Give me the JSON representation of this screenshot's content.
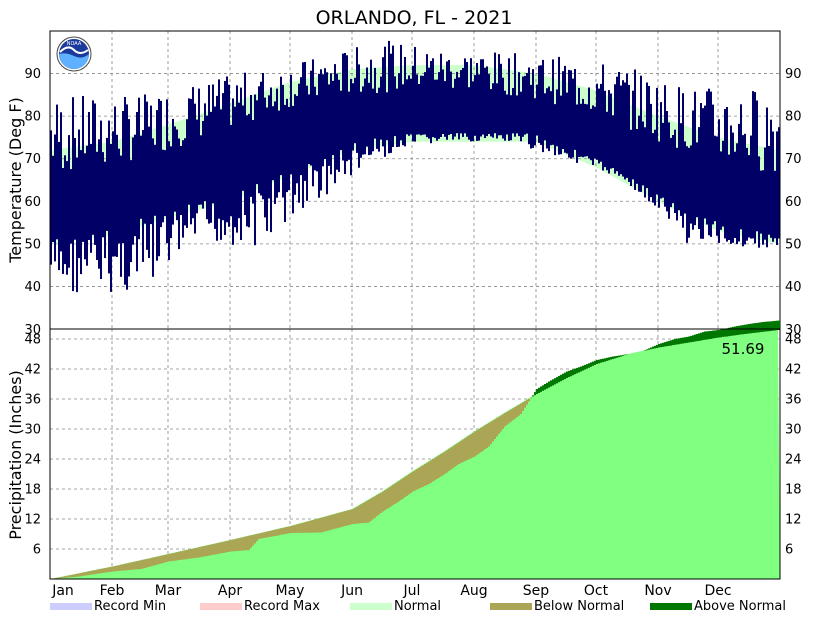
{
  "chart_data": [
    {
      "type": "bar",
      "panel": "temperature",
      "title": "ORLANDO, FL - 2021",
      "ylabel": "Temperature (Deg F)",
      "ylim": [
        30,
        100
      ],
      "yticks": [
        40,
        50,
        60,
        70,
        80,
        90
      ],
      "xlabel": "",
      "grid": true,
      "x_ticks": [
        "Jan",
        "Feb",
        "Mar",
        "Apr",
        "May",
        "Jun",
        "Jul",
        "Aug",
        "Sep",
        "Oct",
        "Nov",
        "Dec"
      ],
      "normal_band": {
        "color": "#ccffcc",
        "day_of_year": [
          1,
          32,
          60,
          91,
          121,
          152,
          182,
          213,
          244,
          274,
          305,
          335,
          365
        ],
        "normal_low": [
          50,
          52,
          56,
          60,
          66,
          72,
          74,
          74,
          74,
          68,
          60,
          53,
          50
        ],
        "normal_high": [
          72,
          74,
          78,
          83,
          88,
          91,
          92,
          92,
          90,
          86,
          80,
          75,
          72
        ]
      },
      "observed_color": "#000066",
      "monthly_observed_range": [
        {
          "month": "Jan",
          "low": 38,
          "high": 85
        },
        {
          "month": "Feb",
          "low": 38,
          "high": 85
        },
        {
          "month": "Mar",
          "low": 50,
          "high": 88
        },
        {
          "month": "Apr",
          "low": 49,
          "high": 91
        },
        {
          "month": "May",
          "low": 60,
          "high": 94
        },
        {
          "month": "Jun",
          "low": 70,
          "high": 98
        },
        {
          "month": "Jul",
          "low": 74,
          "high": 96
        },
        {
          "month": "Aug",
          "low": 74,
          "high": 95
        },
        {
          "month": "Sep",
          "low": 70,
          "high": 94
        },
        {
          "month": "Oct",
          "low": 65,
          "high": 92
        },
        {
          "month": "Nov",
          "low": 50,
          "high": 87
        },
        {
          "month": "Dec",
          "low": 49,
          "high": 87
        }
      ]
    },
    {
      "type": "area",
      "panel": "precipitation",
      "ylabel": "Precipitation (Inches)",
      "ylim": [
        0,
        50
      ],
      "yticks": [
        6,
        12,
        18,
        24,
        30,
        36,
        42,
        48
      ],
      "grid": true,
      "x_ticks": [
        "Jan",
        "Feb",
        "Mar",
        "Apr",
        "May",
        "Jun",
        "Jul",
        "Aug",
        "Sep",
        "Oct",
        "Nov",
        "Dec"
      ],
      "total_label": "51.69",
      "normal_fill_color": "#80ff80",
      "below_normal_color": "#aaa655",
      "above_normal_color": "#007700",
      "normal_cumulative": {
        "day_of_year": [
          1,
          32,
          60,
          91,
          121,
          152,
          167,
          182,
          198,
          213,
          228,
          244,
          259,
          274,
          290,
          305,
          320,
          335,
          350,
          365
        ],
        "values": [
          0,
          2.5,
          5.0,
          7.8,
          10.6,
          14.0,
          17.5,
          21.5,
          25.5,
          29.5,
          33.2,
          37.0,
          40.2,
          43.0,
          45.0,
          46.3,
          47.3,
          48.3,
          49.1,
          49.8
        ]
      },
      "observed_cumulative": {
        "day_of_year": [
          1,
          15,
          32,
          46,
          60,
          75,
          91,
          100,
          105,
          121,
          136,
          152,
          160,
          167,
          175,
          182,
          190,
          198,
          205,
          213,
          220,
          228,
          236,
          244,
          250,
          259,
          266,
          274,
          282,
          290,
          297,
          305,
          313,
          320,
          328,
          335,
          343,
          350,
          357,
          365
        ],
        "values": [
          0,
          0.5,
          1.5,
          2.0,
          3.5,
          4.3,
          5.5,
          5.8,
          8.0,
          9.2,
          9.3,
          11.0,
          11.3,
          13.5,
          15.5,
          17.5,
          19.0,
          21.0,
          23.0,
          24.5,
          26.5,
          30.5,
          33.0,
          38.0,
          39.5,
          41.5,
          42.5,
          43.8,
          44.5,
          45.0,
          45.6,
          47.0,
          48.0,
          48.5,
          49.5,
          49.8,
          50.5,
          51.0,
          51.4,
          51.69
        ]
      },
      "legend": [
        {
          "label": "Record Min",
          "color": "#ccccff"
        },
        {
          "label": "Record Max",
          "color": "#ffcccc"
        },
        {
          "label": "Normal",
          "color": "#ccffcc"
        },
        {
          "label": "Below Normal",
          "color": "#aaa655"
        },
        {
          "label": "Above Normal",
          "color": "#007700"
        }
      ],
      "legend_placement": "bottom"
    }
  ]
}
